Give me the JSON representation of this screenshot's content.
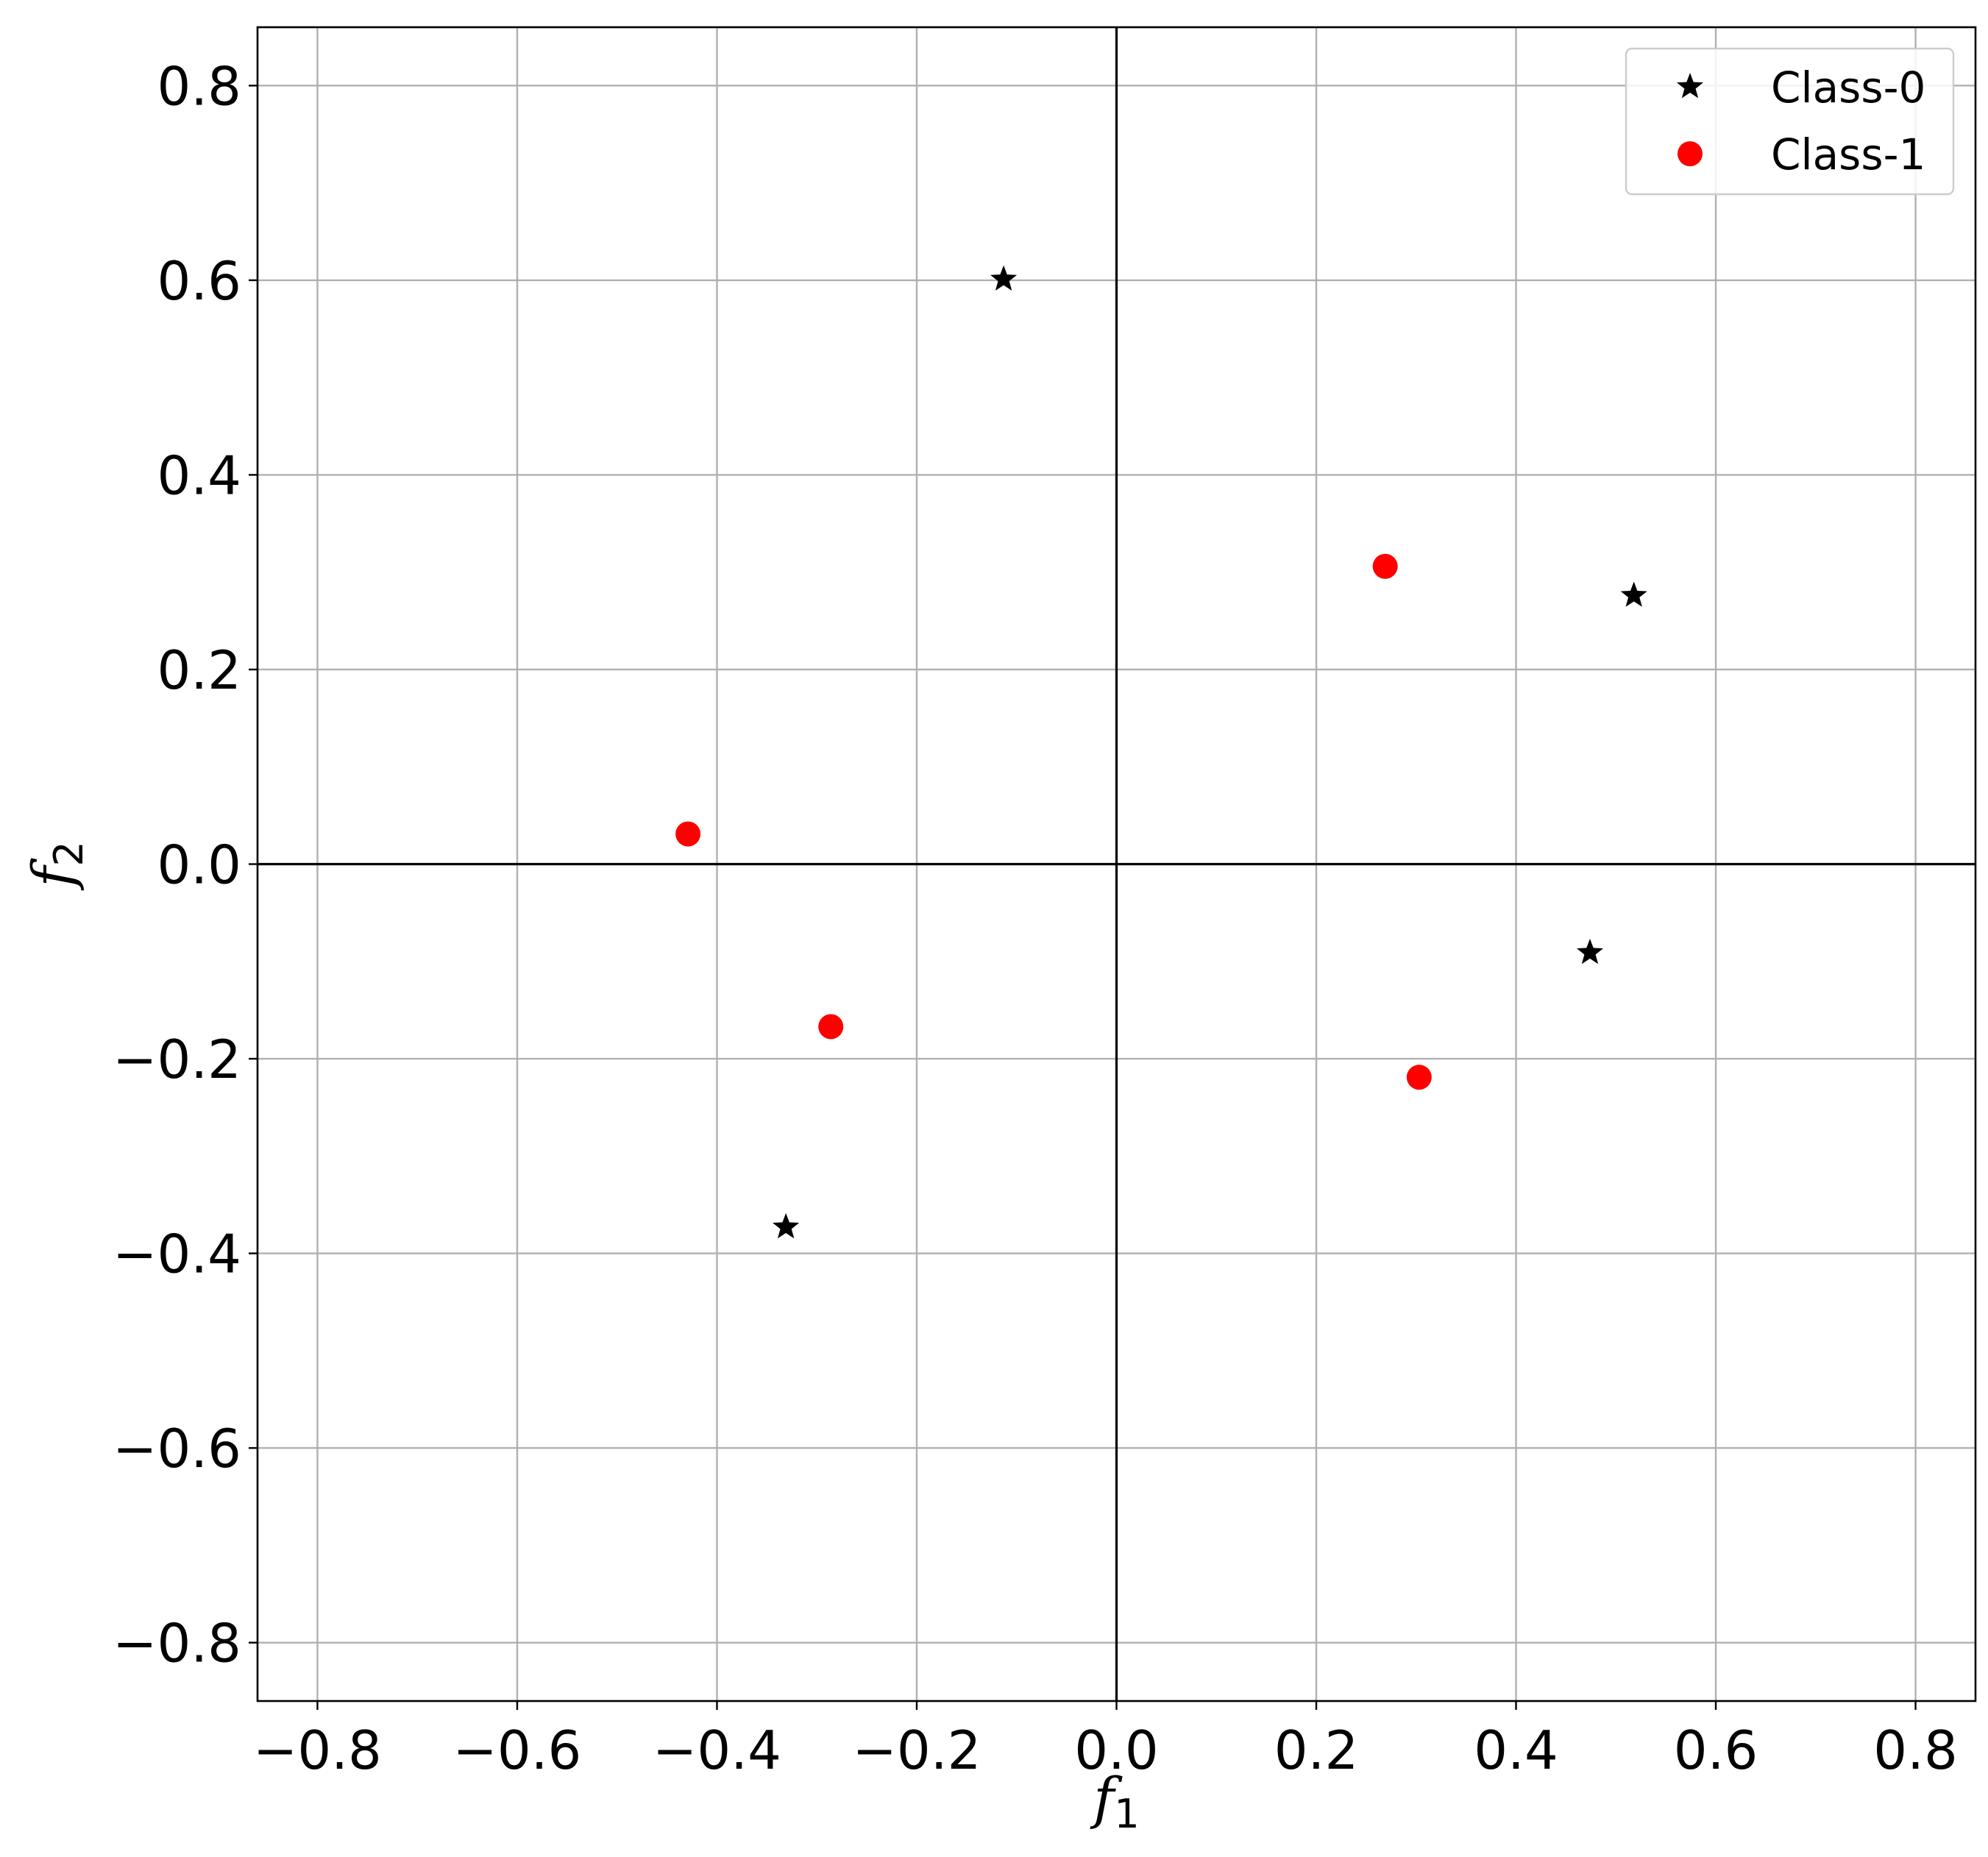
{
  "chart_data": {
    "type": "scatter",
    "title": "",
    "xlabel": {
      "base": "f",
      "sub": "1"
    },
    "ylabel": {
      "base": "f",
      "sub": "2"
    },
    "xlim": [
      -0.86,
      0.86
    ],
    "ylim": [
      -0.86,
      0.86
    ],
    "xticks": [
      -0.8,
      -0.6,
      -0.4,
      -0.2,
      0.0,
      0.2,
      0.4,
      0.6,
      0.8
    ],
    "yticks": [
      -0.8,
      -0.6,
      -0.4,
      -0.2,
      0.0,
      0.2,
      0.4,
      0.6,
      0.8
    ],
    "xtick_labels": [
      "−0.8",
      "−0.6",
      "−0.4",
      "−0.2",
      "0.0",
      "0.2",
      "0.4",
      "0.6",
      "0.8"
    ],
    "ytick_labels": [
      "−0.8",
      "−0.6",
      "−0.4",
      "−0.2",
      "0.0",
      "0.2",
      "0.4",
      "0.6",
      "0.8"
    ],
    "grid": true,
    "zero_lines": true,
    "legend_position": "top-right",
    "series": [
      {
        "name": "Class-0",
        "marker": "star",
        "color": "#000000",
        "points": [
          [
            -0.113,
            0.601
          ],
          [
            0.518,
            0.276
          ],
          [
            0.474,
            -0.091
          ],
          [
            -0.331,
            -0.373
          ]
        ]
      },
      {
        "name": "Class-1",
        "marker": "circle",
        "color": "#ff0000",
        "points": [
          [
            0.269,
            0.306
          ],
          [
            -0.429,
            0.031
          ],
          [
            -0.286,
            -0.167
          ],
          [
            0.303,
            -0.219
          ]
        ]
      }
    ]
  }
}
